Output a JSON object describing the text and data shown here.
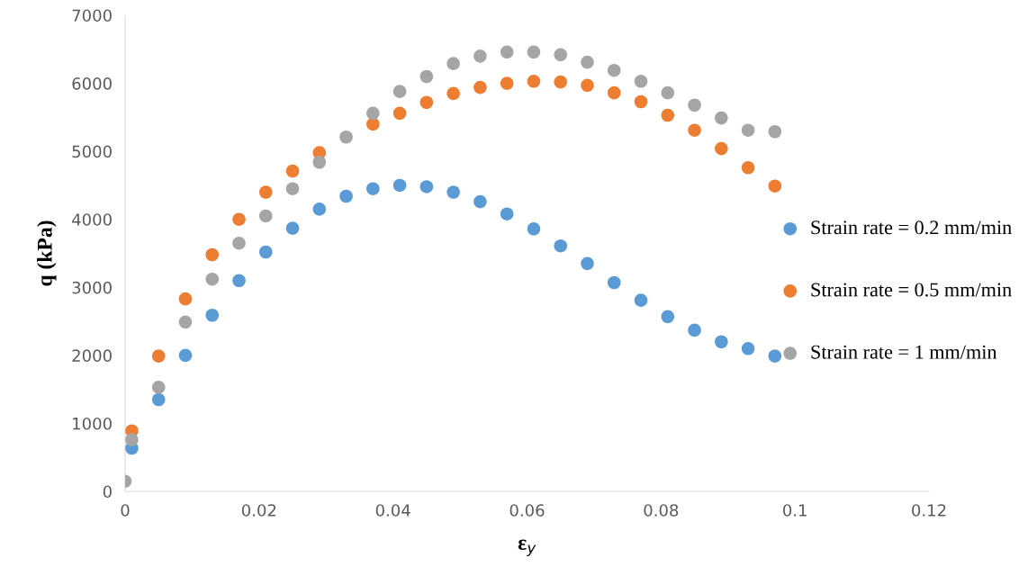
{
  "chart_data": {
    "type": "scatter",
    "xlabel": "ε$_{y}$",
    "ylabel": "q (kPa)",
    "x": [
      0,
      0.001,
      0.005,
      0.009,
      0.013,
      0.017,
      0.021,
      0.025,
      0.029,
      0.033,
      0.037,
      0.041,
      0.045,
      0.049,
      0.053,
      0.057,
      0.061,
      0.065,
      0.069,
      0.073,
      0.077,
      0.081,
      0.085,
      0.089,
      0.093,
      0.097
    ],
    "series": [
      {
        "name": "Strain rate = 0.2 mm/min",
        "color": "#5b9bd5",
        "values": [
          null,
          635,
          1350,
          2000,
          2590,
          3100,
          3520,
          3870,
          4150,
          4340,
          4450,
          4500,
          4480,
          4400,
          4260,
          4080,
          3860,
          3610,
          3350,
          3070,
          2810,
          2570,
          2370,
          2200,
          2100,
          1990
        ]
      },
      {
        "name": "Strain rate = 0.5 mm/min",
        "color": "#ed7d31",
        "values": [
          null,
          890,
          1990,
          2830,
          3480,
          4000,
          4400,
          4710,
          4980,
          null,
          5400,
          5560,
          5720,
          5850,
          5940,
          6000,
          6030,
          6020,
          5970,
          5860,
          5730,
          5530,
          5310,
          5040,
          4760,
          4490
        ]
      },
      {
        "name": "Strain rate = 1 mm/min",
        "color": "#a5a5a5",
        "values": [
          150,
          760,
          1530,
          2490,
          3120,
          3650,
          4050,
          4450,
          4840,
          5210,
          5560,
          5880,
          6100,
          6290,
          6400,
          6460,
          6460,
          6420,
          6310,
          6190,
          6030,
          5860,
          5680,
          5490,
          5310,
          5290
        ]
      }
    ],
    "xlim": [
      0,
      0.12
    ],
    "xticks": [
      0,
      0.02,
      0.04,
      0.06,
      0.08,
      0.1,
      0.12
    ],
    "ylim": [
      0,
      7000
    ],
    "yticks": [
      0,
      1000,
      2000,
      3000,
      4000,
      5000,
      6000,
      7000
    ],
    "marker": "circle",
    "legend": "right",
    "grid": false
  }
}
